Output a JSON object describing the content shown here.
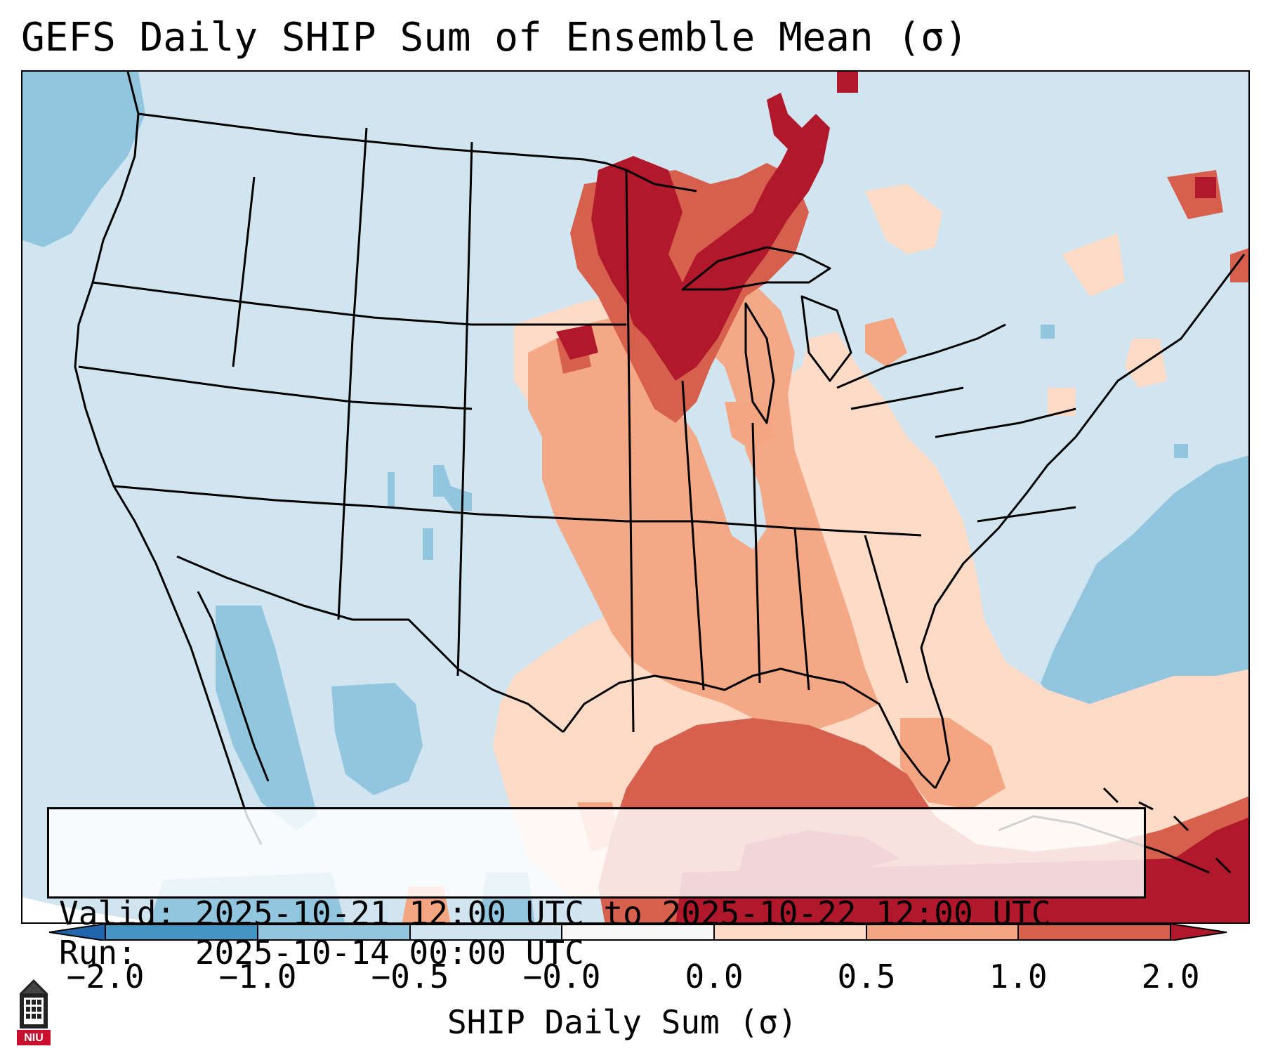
{
  "title": "GEFS Daily SHIP Sum of Ensemble Mean (σ)",
  "info": {
    "valid_label": "Valid:",
    "valid_value": "2025-10-21 12:00 UTC to 2025-10-22 12:00 UTC",
    "run_label": "Run:",
    "run_value": "2025-10-14 00:00 UTC"
  },
  "colorbar": {
    "label": "SHIP Daily Sum (σ)",
    "ticks": [
      "−2.0",
      "−1.0",
      "−0.5",
      "−0.0",
      "0.0",
      "0.5",
      "1.0",
      "2.0"
    ],
    "colors": [
      "#4393c3",
      "#92c5de",
      "#d1e5f0",
      "#f7f7f7",
      "#fddbc7",
      "#f4a582",
      "#d6604d",
      "#b2182b"
    ],
    "extend_low_color": "#2166ac",
    "extend_high_color": "#b2182b"
  },
  "logo": {
    "text": "NIU",
    "icon": "university-tower-icon",
    "color": "#c8102e"
  }
}
